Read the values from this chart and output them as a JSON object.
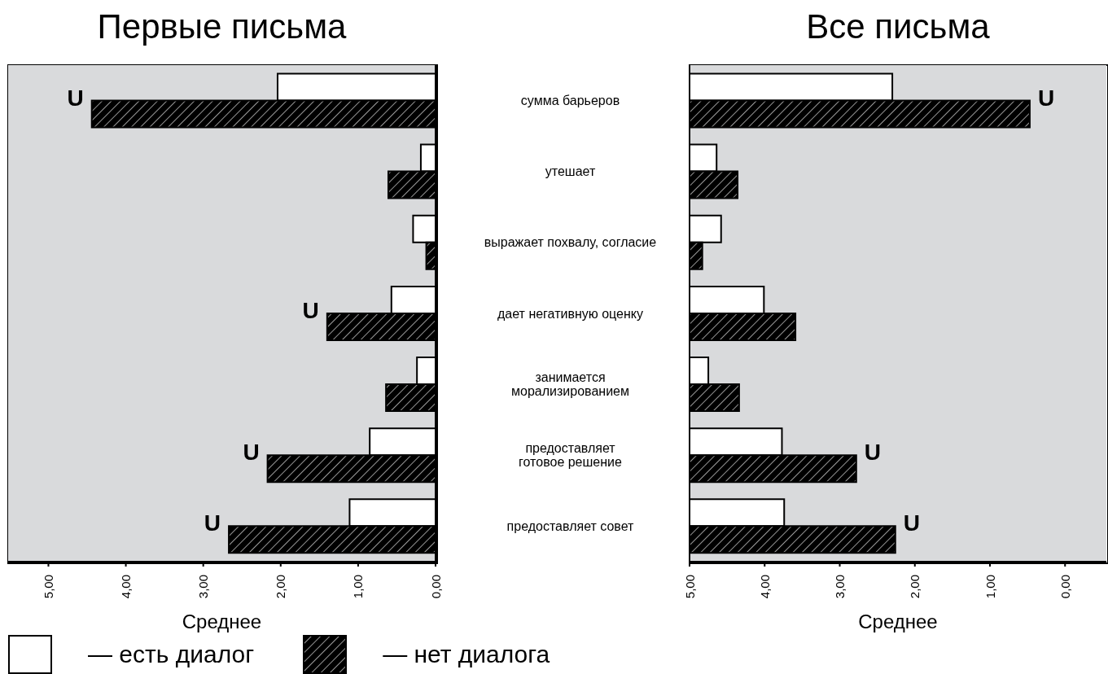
{
  "chart_data": [
    {
      "type": "bar",
      "orientation": "horizontal",
      "title": "Первые письма",
      "xlabel": "Среднее",
      "legend": "bottom",
      "categories": [
        "сумма барьеров",
        "утешает",
        "выражает похвалу, согласие",
        "дает негативную оценку",
        "занимается\nморализированием",
        "предоставляет\nготовое решение",
        "предоставляет совет"
      ],
      "series": [
        {
          "name": "— есть диалог",
          "color": "#ffffff",
          "values": [
            2.04,
            0.19,
            0.29,
            0.57,
            0.24,
            0.85,
            1.11
          ]
        },
        {
          "name": "— нет диалога",
          "color": "#000000",
          "values": [
            4.44,
            0.61,
            0.12,
            1.4,
            0.64,
            2.17,
            2.67
          ]
        }
      ],
      "xlim": [
        5.52,
        0
      ],
      "xticks": [
        {
          "value": 5,
          "label": "5,00"
        },
        {
          "value": 4,
          "label": "4,00"
        },
        {
          "value": 3,
          "label": "3,00"
        },
        {
          "value": 2,
          "label": "2,00"
        },
        {
          "value": 1,
          "label": "1,00"
        },
        {
          "value": 0,
          "label": "0,00"
        }
      ],
      "annotations": [
        {
          "text": "U",
          "x": 4.44,
          "y": "сумма барьеров"
        },
        {
          "text": "U",
          "x": 1.4,
          "y": "дает негативную оценку"
        },
        {
          "text": "U",
          "x": 2.17,
          "y": "предоставляет\nготовое решение"
        },
        {
          "text": "U",
          "x": 2.67,
          "y": "предоставляет совет"
        }
      ]
    },
    {
      "type": "bar",
      "orientation": "horizontal",
      "title": "Все письма",
      "xlabel": "Среднее",
      "tick_labels": "x",
      "categories": [
        "сумма барьеров",
        "утешает",
        "выражает похвалу, согласие",
        "дает негативную оценку",
        "занимается\nморализированием",
        "предоставляет\nготовое решение",
        "предоставляет совет"
      ],
      "series": [
        {
          "color": "#ffffff",
          "base": [
            5,
            5,
            5,
            5,
            5,
            5,
            5
          ],
          "values": [
            -2.7,
            -0.36,
            -0.42,
            -0.99,
            -0.25,
            -1.23,
            -1.26
          ]
        },
        {
          "color": "#000000",
          "base": [
            5,
            5,
            5,
            5,
            5,
            5,
            5
          ],
          "values": [
            -4.53,
            -0.64,
            -0.17,
            -1.41,
            -0.66,
            -2.22,
            -2.74
          ]
        }
      ],
      "xlim": [
        5,
        -0.55
      ],
      "xticks": [
        {
          "value": 5,
          "label": "5,00"
        },
        {
          "value": 4,
          "label": "4,00"
        },
        {
          "value": 3,
          "label": "3,00"
        },
        {
          "value": 2,
          "label": "2,00"
        },
        {
          "value": 1,
          "label": "1,00"
        },
        {
          "value": 0,
          "label": "0,00"
        }
      ],
      "annotations": [
        {
          "text": "U",
          "x": 0.47,
          "y": "сумма барьеров"
        },
        {
          "text": "U",
          "x": 2.78,
          "y": "предоставляет\nготовое решение"
        },
        {
          "text": "U",
          "x": 2.26,
          "y": "предоставляет совет"
        }
      ]
    }
  ]
}
